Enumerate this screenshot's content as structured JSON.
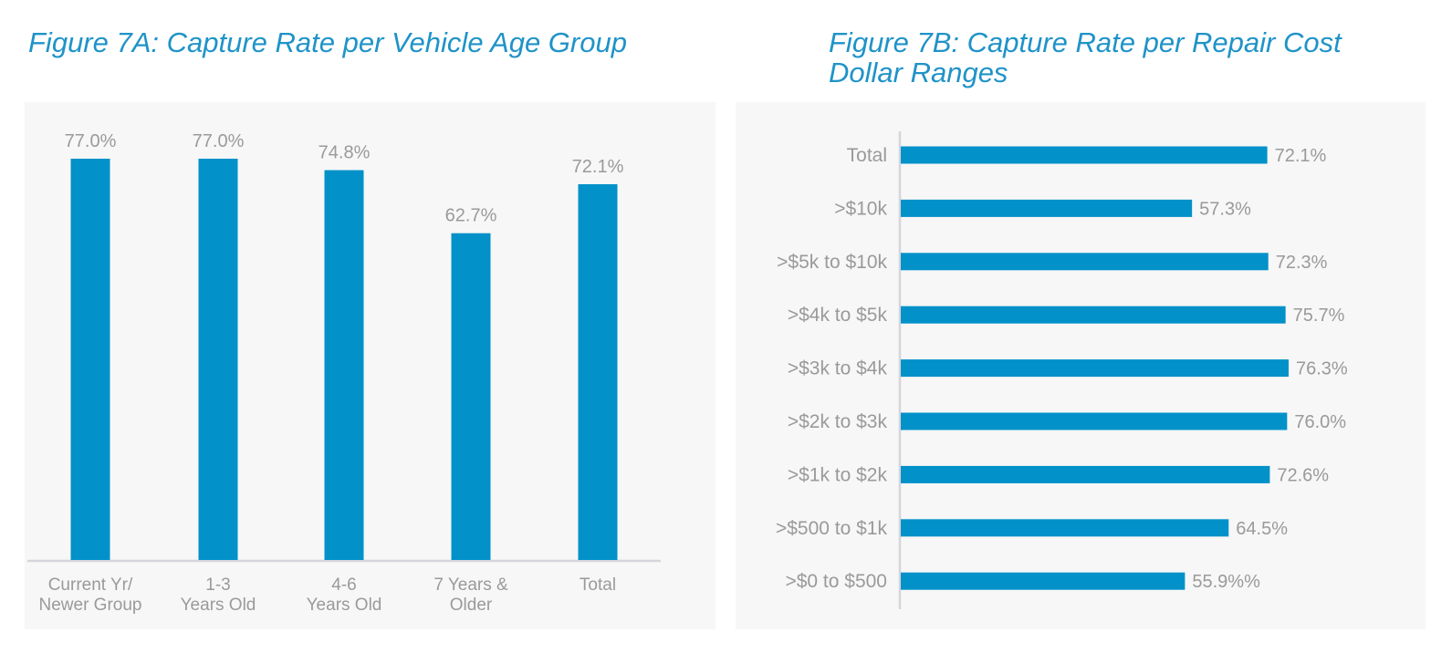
{
  "figures": [
    {
      "title": "Figure 7A: Capture Rate per Vehicle Age Group"
    },
    {
      "title": "Figure 7B: Capture Rate per Repair Cost Dollar Ranges"
    }
  ],
  "chart_data": [
    {
      "type": "bar",
      "orientation": "vertical",
      "title": "Figure 7A: Capture Rate per Vehicle Age Group",
      "categories": [
        [
          "Current Yr/",
          "Newer Group"
        ],
        [
          "1-3",
          "Years Old"
        ],
        [
          "4-6",
          "Years Old"
        ],
        [
          "7 Years &",
          "Older"
        ],
        [
          "Total"
        ]
      ],
      "values": [
        77.0,
        77.0,
        74.8,
        62.7,
        72.1
      ],
      "data_labels": [
        "77.0%",
        "77.0%",
        "74.8%",
        "62.7%",
        "72.1%"
      ],
      "ylim": [
        0,
        80
      ],
      "grid": false,
      "legend": "none",
      "colors": {
        "bar": "#0291c9",
        "axis": "#d5d5dc",
        "text": "#9a9a9a",
        "panel": "#f7f7f7",
        "title": "#1f93c8"
      }
    },
    {
      "type": "bar",
      "orientation": "horizontal",
      "title": "Figure 7B: Capture Rate per Repair Cost Dollar Ranges",
      "categories": [
        "Total",
        ">$10k",
        ">$5k to $10k",
        ">$4k to $5k",
        ">$3k to $4k",
        ">$2k to $3k",
        ">$1k to $2k",
        ">$500 to $1k",
        ">$0 to $500"
      ],
      "values": [
        72.1,
        57.3,
        72.3,
        75.7,
        76.3,
        76.0,
        72.6,
        64.5,
        55.9
      ],
      "data_labels": [
        "72.1%",
        "57.3%",
        "72.3%",
        "75.7%",
        "76.3%",
        "76.0%",
        "72.6%",
        "64.5%",
        "55.9%%"
      ],
      "xlim": [
        0,
        100
      ],
      "grid": false,
      "legend": "none",
      "colors": {
        "bar": "#0291c9",
        "axis": "#d5d5dc",
        "text": "#9a9a9a",
        "panel": "#f7f7f7",
        "title": "#1f93c8"
      }
    }
  ]
}
